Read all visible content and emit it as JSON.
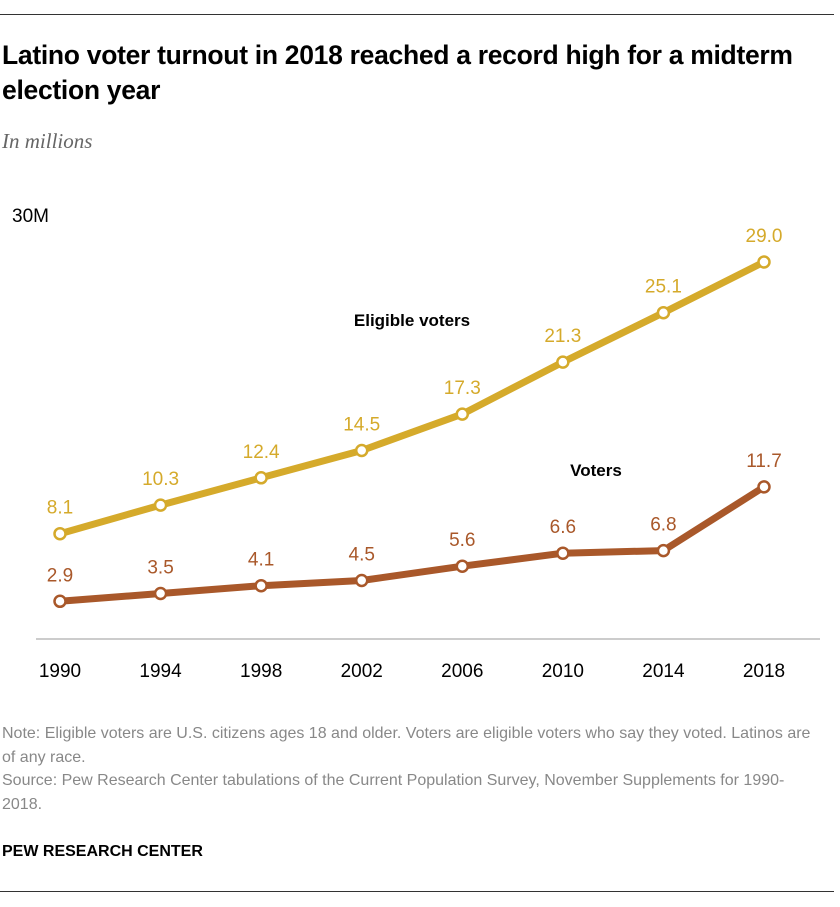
{
  "title": "Latino voter turnout in 2018 reached a record high for a midterm election year",
  "subtitle": "In millions",
  "chart_data": {
    "type": "line",
    "x": [
      "1990",
      "1994",
      "1998",
      "2002",
      "2006",
      "2010",
      "2014",
      "2018"
    ],
    "series": [
      {
        "name": "Eligible voters",
        "color": "#d5aa2b",
        "values": [
          8.1,
          10.3,
          12.4,
          14.5,
          17.3,
          21.3,
          25.1,
          29.0
        ]
      },
      {
        "name": "Voters",
        "color": "#a9582a",
        "values": [
          2.9,
          3.5,
          4.1,
          4.5,
          5.6,
          6.6,
          6.8,
          11.7
        ]
      }
    ],
    "ylim": [
      0,
      30
    ],
    "y_top_label": "30M",
    "grid": false
  },
  "note": "Note: Eligible voters are U.S. citizens ages 18 and older. Voters are eligible voters who say they voted. Latinos are of any race.",
  "source": "Source: Pew Research Center tabulations of the Current Population Survey, November Supplements for 1990-2018.",
  "brand": "PEW RESEARCH CENTER"
}
